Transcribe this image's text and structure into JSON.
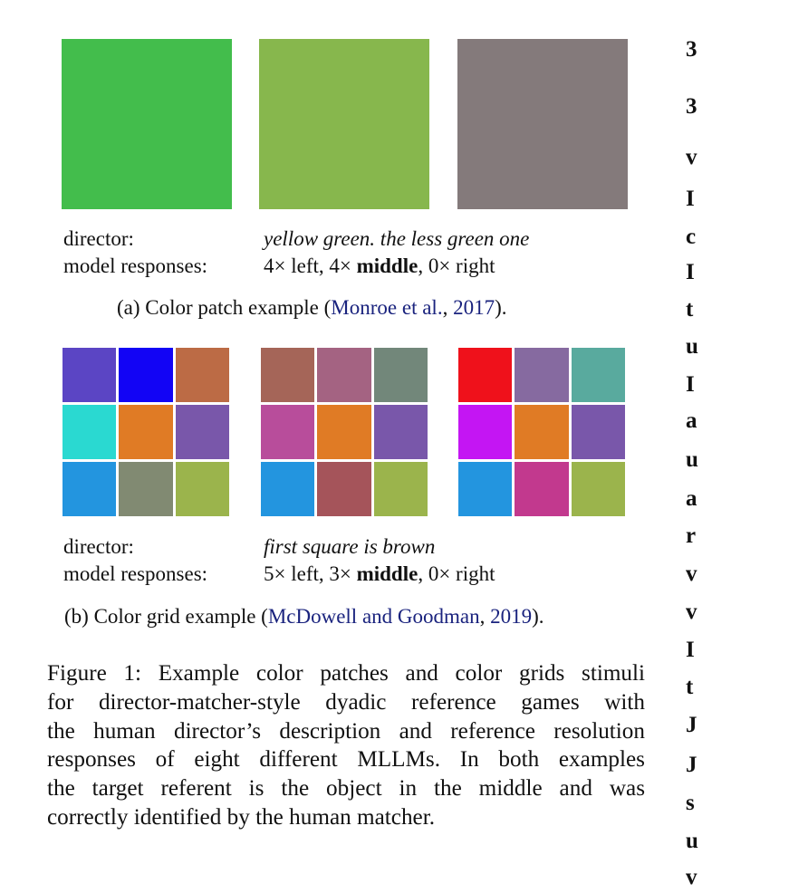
{
  "panel_a": {
    "patches": [
      {
        "color": "#43bd4c"
      },
      {
        "color": "#87b74d"
      },
      {
        "color": "#847a7b"
      }
    ],
    "director_label": "director:",
    "director_text": "yellow green. the less green one",
    "responses_label": "model responses:",
    "responses": {
      "left": "4× left, 4×",
      "middle": "middle",
      "right": ", 0× right"
    },
    "caption": {
      "prefix": "(a) Color patch example (",
      "cite_author": "Monroe et al.",
      "cite_sep": ", ",
      "cite_year": "2017",
      "suffix": ")."
    }
  },
  "panel_b": {
    "grids": [
      {
        "cells": [
          "#5b45c4",
          "#1204f5",
          "#bc6b45",
          "#2ad9d1",
          "#e07b25",
          "#7957aa",
          "#2395df",
          "#818a72",
          "#9bb44c"
        ]
      },
      {
        "cells": [
          "#a56558",
          "#a46382",
          "#72877a",
          "#b84d9b",
          "#e07b25",
          "#7957aa",
          "#2395df",
          "#a5545a",
          "#9bb44c"
        ]
      },
      {
        "cells": [
          "#ef111b",
          "#866aa0",
          "#59aa9e",
          "#c415f3",
          "#e07b25",
          "#7957aa",
          "#2395df",
          "#c2398e",
          "#9bb44c"
        ]
      }
    ],
    "director_label": "director:",
    "director_text": "first square is brown",
    "responses_label": "model responses:",
    "responses": {
      "left": "5× left, 3×",
      "middle": "middle",
      "right": ", 0× right"
    },
    "caption": {
      "prefix": "(b) Color grid example (",
      "cite_author": "McDowell and Goodman",
      "cite_sep": ", ",
      "cite_year": "2019",
      "suffix": ")."
    }
  },
  "figure_caption": {
    "lines": [
      "Figure 1: Example color patches and color grids stimuli",
      "for director-matcher-style dyadic reference games with",
      "the human director’s description and reference resolution",
      "responses of eight different MLLMs. In both examples",
      "the target referent is the object in the middle and was",
      "correctly identified by the human matcher."
    ]
  },
  "edge_letters": [
    "3",
    "3",
    "v",
    "I",
    "c",
    "I",
    "t",
    "u",
    "I",
    "a",
    "u",
    "a",
    "r",
    "v",
    "v",
    "I",
    "t",
    "J",
    "J",
    "s",
    "u",
    "v"
  ]
}
